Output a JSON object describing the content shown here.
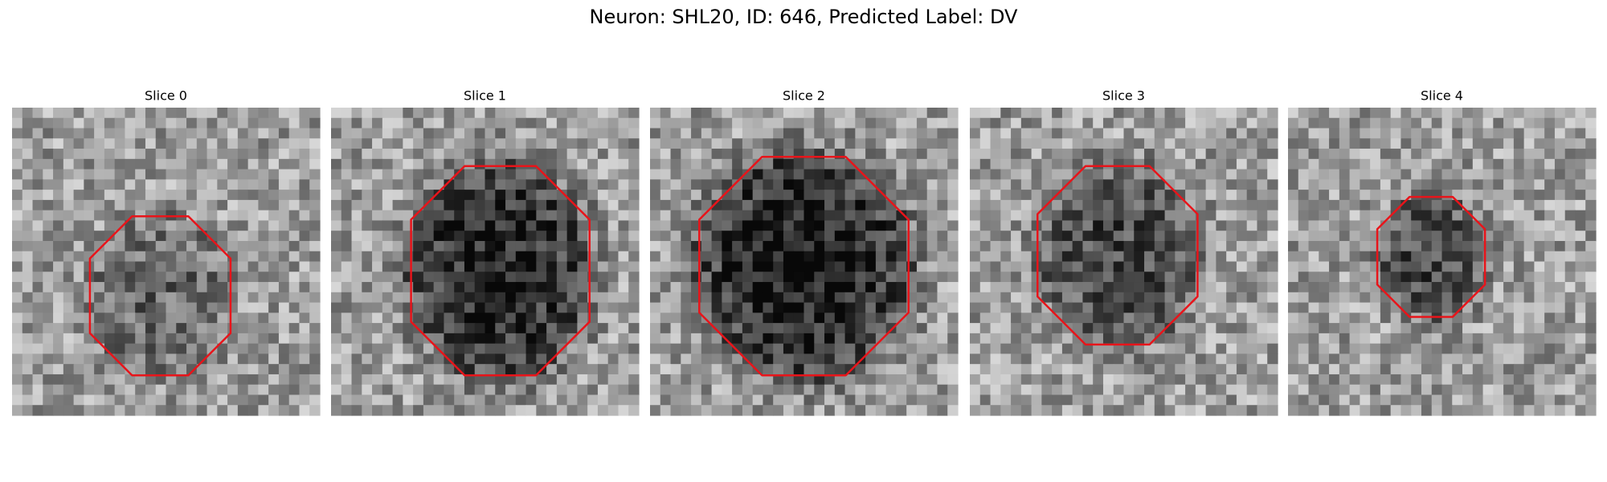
{
  "title": "Neuron: SHL20, ID: 646, Predicted Label: DV",
  "panels": [
    {
      "title": "Slice 0"
    },
    {
      "title": "Slice 1"
    },
    {
      "title": "Slice 2"
    },
    {
      "title": "Slice 3"
    },
    {
      "title": "Slice 4"
    }
  ]
}
